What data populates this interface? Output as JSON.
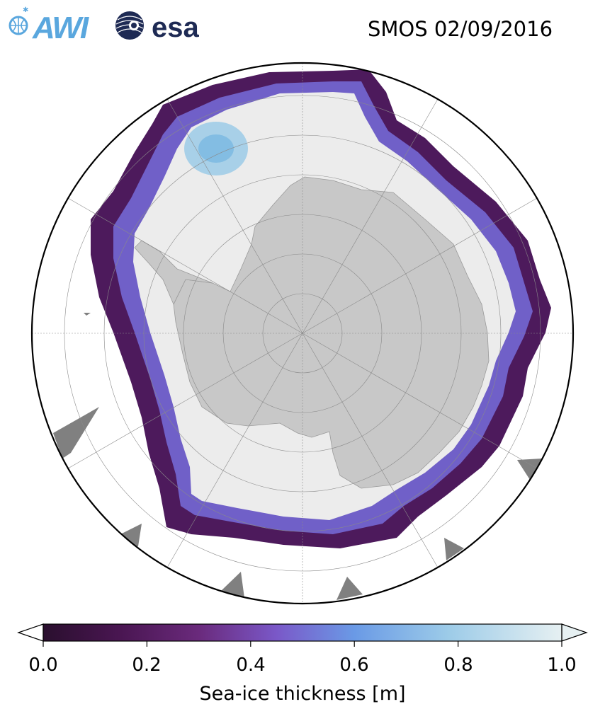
{
  "header": {
    "awi_logo_text": "AWI",
    "esa_logo_text": "esa",
    "title": "SMOS 02/09/2016"
  },
  "colorbar": {
    "label": "Sea-ice thickness [m]",
    "ticks": [
      "0.0",
      "0.2",
      "0.4",
      "0.6",
      "0.8",
      "1.0"
    ],
    "range": [
      0.0,
      1.0
    ],
    "extend": "both",
    "colormap": [
      "#2a0f2e",
      "#4a1652",
      "#6a2a7c",
      "#7a58c8",
      "#6a9ae6",
      "#9ccbe8",
      "#e6f0f2"
    ]
  },
  "map": {
    "projection": "south-polar-stereographic",
    "land_color": "#c8c8c8",
    "ocean_color": "#ffffff",
    "no_data_color": "#808080",
    "grid": true
  }
}
